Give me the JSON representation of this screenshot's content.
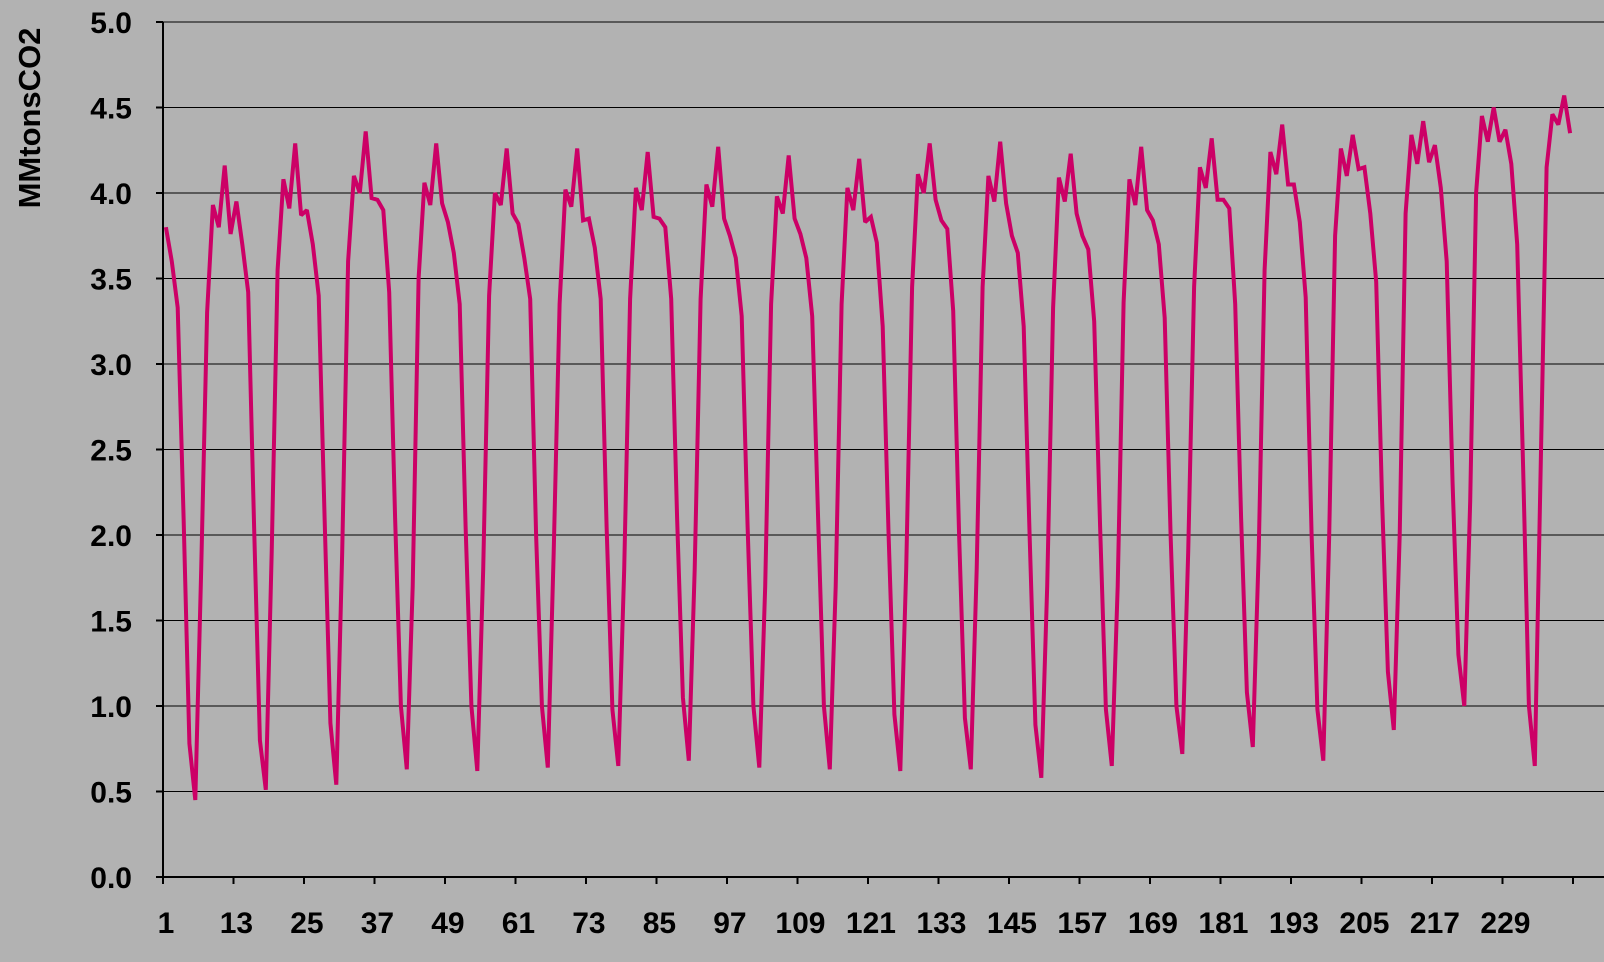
{
  "chart_data": {
    "type": "line",
    "title": "",
    "xlabel": "",
    "ylabel": "MMtonsCO2",
    "ylim": [
      0,
      5
    ],
    "y_ticks": [
      "0.0",
      "0.5",
      "1.0",
      "1.5",
      "2.0",
      "2.5",
      "3.0",
      "3.5",
      "4.0",
      "4.5",
      "5.0"
    ],
    "x_ticks": [
      "1",
      "13",
      "25",
      "37",
      "49",
      "61",
      "73",
      "85",
      "97",
      "109",
      "121",
      "133",
      "145",
      "157",
      "169",
      "181",
      "193",
      "205",
      "217",
      "229"
    ],
    "grid": "horizontal",
    "legend": "none",
    "series_color": "#cc0066",
    "series": [
      {
        "x_start": 1,
        "values": [
          3.8,
          3.6,
          3.33,
          2.1,
          0.78,
          0.45,
          1.8,
          3.3,
          3.93,
          3.8,
          4.16,
          3.76,
          3.95,
          3.7,
          3.42,
          2.05,
          0.8,
          0.51,
          1.9,
          3.55,
          4.08,
          3.91,
          4.29,
          3.87,
          3.9,
          3.7,
          3.4,
          2.1,
          0.9,
          0.54,
          1.9,
          3.6,
          4.1,
          4.0,
          4.36,
          3.97,
          3.96,
          3.9,
          3.42,
          2.1,
          1.0,
          0.63,
          1.7,
          3.5,
          4.06,
          3.93,
          4.29,
          3.94,
          3.83,
          3.65,
          3.35,
          2.05,
          1.0,
          0.62,
          1.8,
          3.4,
          4.0,
          3.93,
          4.26,
          3.88,
          3.82,
          3.62,
          3.38,
          2.0,
          1.0,
          0.64,
          1.9,
          3.35,
          4.02,
          3.92,
          4.26,
          3.84,
          3.85,
          3.68,
          3.38,
          2.05,
          0.98,
          0.65,
          1.8,
          3.38,
          4.03,
          3.9,
          4.24,
          3.86,
          3.85,
          3.8,
          3.38,
          2.1,
          1.05,
          0.68,
          1.8,
          3.38,
          4.05,
          3.92,
          4.27,
          3.85,
          3.75,
          3.62,
          3.28,
          2.05,
          1.0,
          0.64,
          1.7,
          3.35,
          3.98,
          3.88,
          4.22,
          3.85,
          3.76,
          3.62,
          3.28,
          2.1,
          1.0,
          0.63,
          1.7,
          3.35,
          4.03,
          3.9,
          4.2,
          3.83,
          3.86,
          3.71,
          3.22,
          2.0,
          0.95,
          0.62,
          1.8,
          3.45,
          4.11,
          4.0,
          4.29,
          3.96,
          3.84,
          3.79,
          3.31,
          2.0,
          0.93,
          0.63,
          1.8,
          3.45,
          4.1,
          3.95,
          4.3,
          3.94,
          3.75,
          3.65,
          3.22,
          2.0,
          0.89,
          0.58,
          1.7,
          3.33,
          4.09,
          3.95,
          4.23,
          3.88,
          3.75,
          3.67,
          3.25,
          2.05,
          0.98,
          0.65,
          1.7,
          3.36,
          4.08,
          3.93,
          4.27,
          3.9,
          3.84,
          3.7,
          3.27,
          2.0,
          1.0,
          0.72,
          1.9,
          3.45,
          4.15,
          4.03,
          4.32,
          3.96,
          3.96,
          3.91,
          3.35,
          2.1,
          1.08,
          0.76,
          1.9,
          3.55,
          4.24,
          4.11,
          4.4,
          4.05,
          4.05,
          3.83,
          3.39,
          2.0,
          0.98,
          0.68,
          2.0,
          3.75,
          4.26,
          4.1,
          4.34,
          4.14,
          4.15,
          3.88,
          3.48,
          2.2,
          1.2,
          0.86,
          2.0,
          3.88,
          4.34,
          4.17,
          4.42,
          4.18,
          4.28,
          4.03,
          3.6,
          2.3,
          1.3,
          1.0,
          2.2,
          4.0,
          4.45,
          4.3,
          4.5,
          4.3,
          4.37,
          4.17,
          3.7,
          2.4,
          1.0,
          0.65,
          2.4,
          4.15,
          4.46,
          4.4,
          4.57,
          4.35
        ]
      }
    ]
  }
}
